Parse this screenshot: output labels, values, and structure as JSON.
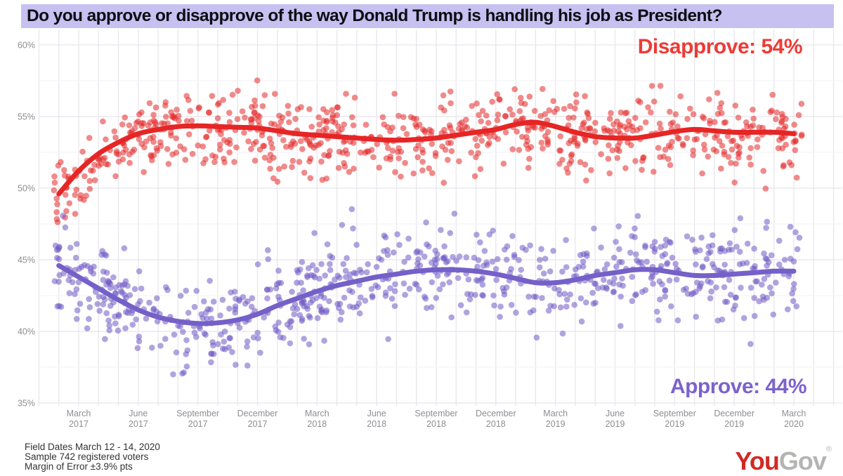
{
  "title": "Do you approve or disapprove of the way Donald Trump is handling his job as President?",
  "annotations": {
    "disapprove_label": "Disapprove: 54%",
    "approve_label": "Approve: 44%"
  },
  "footer": {
    "lines": [
      "Field Dates March 12 - 14, 2020",
      "Sample 742 registered voters",
      "Margin of Error ±3.9% pts"
    ]
  },
  "logo": {
    "part1": "You",
    "part2": "Gov",
    "registered": "®"
  },
  "colors": {
    "title_bg": "#c7c1f2",
    "title_text": "#0d0d12",
    "disapprove_line": "#e62525",
    "disapprove_dot": "#e42a2a",
    "disapprove_label": "#ee3b35",
    "approve_line": "#7560c8",
    "approve_dot": "#6f59c4",
    "approve_label": "#7c62cd",
    "grid_vertical": "#e8e6ec",
    "grid_major": "#e6e4ea",
    "grid_minor": "#f3f2f6",
    "axis_text": "#8e8e93",
    "logo_red": "#d02a26",
    "logo_gray": "#b5b4b3"
  },
  "chart_data": {
    "type": "scatter",
    "title": "Do you approve or disapprove of the way Donald Trump is handling his job as President?",
    "xlabel": "",
    "ylabel": "",
    "ylim": [
      35,
      60
    ],
    "grid": true,
    "y_ticks": [
      {
        "value": 35,
        "label": "35%"
      },
      {
        "value": 40,
        "label": "40%"
      },
      {
        "value": 45,
        "label": "45%"
      },
      {
        "value": 50,
        "label": "50%"
      },
      {
        "value": 55,
        "label": "55%"
      },
      {
        "value": 60,
        "label": "60%"
      }
    ],
    "x_ticks": [
      {
        "month_index": 0,
        "line1": "March",
        "line2": "2017"
      },
      {
        "month_index": 3,
        "line1": "June",
        "line2": "2017"
      },
      {
        "month_index": 6,
        "line1": "September",
        "line2": "2017"
      },
      {
        "month_index": 9,
        "line1": "December",
        "line2": "2017"
      },
      {
        "month_index": 12,
        "line1": "March",
        "line2": "2018"
      },
      {
        "month_index": 15,
        "line1": "June",
        "line2": "2018"
      },
      {
        "month_index": 18,
        "line1": "September",
        "line2": "2018"
      },
      {
        "month_index": 21,
        "line1": "December",
        "line2": "2018"
      },
      {
        "month_index": 24,
        "line1": "March",
        "line2": "2019"
      },
      {
        "month_index": 27,
        "line1": "June",
        "line2": "2019"
      },
      {
        "month_index": 30,
        "line1": "September",
        "line2": "2019"
      },
      {
        "month_index": 33,
        "line1": "December",
        "line2": "2019"
      },
      {
        "month_index": 36,
        "line1": "March",
        "line2": "2020"
      }
    ],
    "series": [
      {
        "name": "Disapprove",
        "final_value": 54,
        "start_month_index": -1,
        "monthly_trend": [
          49.6,
          51.2,
          52.4,
          53.2,
          53.8,
          54.1,
          54.3,
          54.35,
          54.3,
          54.25,
          54.2,
          54.0,
          53.8,
          53.7,
          53.6,
          53.5,
          53.4,
          53.35,
          53.4,
          53.5,
          53.7,
          53.9,
          54.1,
          54.45,
          54.6,
          54.3,
          53.9,
          53.6,
          53.5,
          53.5,
          53.7,
          53.95,
          54.1,
          54.0,
          53.9,
          53.9,
          53.9,
          53.8
        ],
        "noise_sd": 1.3
      },
      {
        "name": "Approve",
        "final_value": 44,
        "start_month_index": -1,
        "monthly_trend": [
          44.6,
          43.8,
          43.0,
          42.2,
          41.5,
          41.0,
          40.7,
          40.55,
          40.6,
          40.8,
          41.2,
          41.8,
          42.3,
          42.8,
          43.2,
          43.5,
          43.8,
          44.0,
          44.2,
          44.3,
          44.3,
          44.2,
          44.0,
          43.7,
          43.4,
          43.4,
          43.6,
          43.9,
          44.1,
          44.3,
          44.3,
          44.1,
          43.9,
          43.9,
          44.0,
          44.1,
          44.2,
          44.2
        ],
        "noise_sd": 1.5
      }
    ],
    "scatter": {
      "points_per_series": 760,
      "seed": 1337,
      "x_month_min": -1.25,
      "x_month_max": 36.4
    },
    "legend_position": "annotations-inline"
  }
}
